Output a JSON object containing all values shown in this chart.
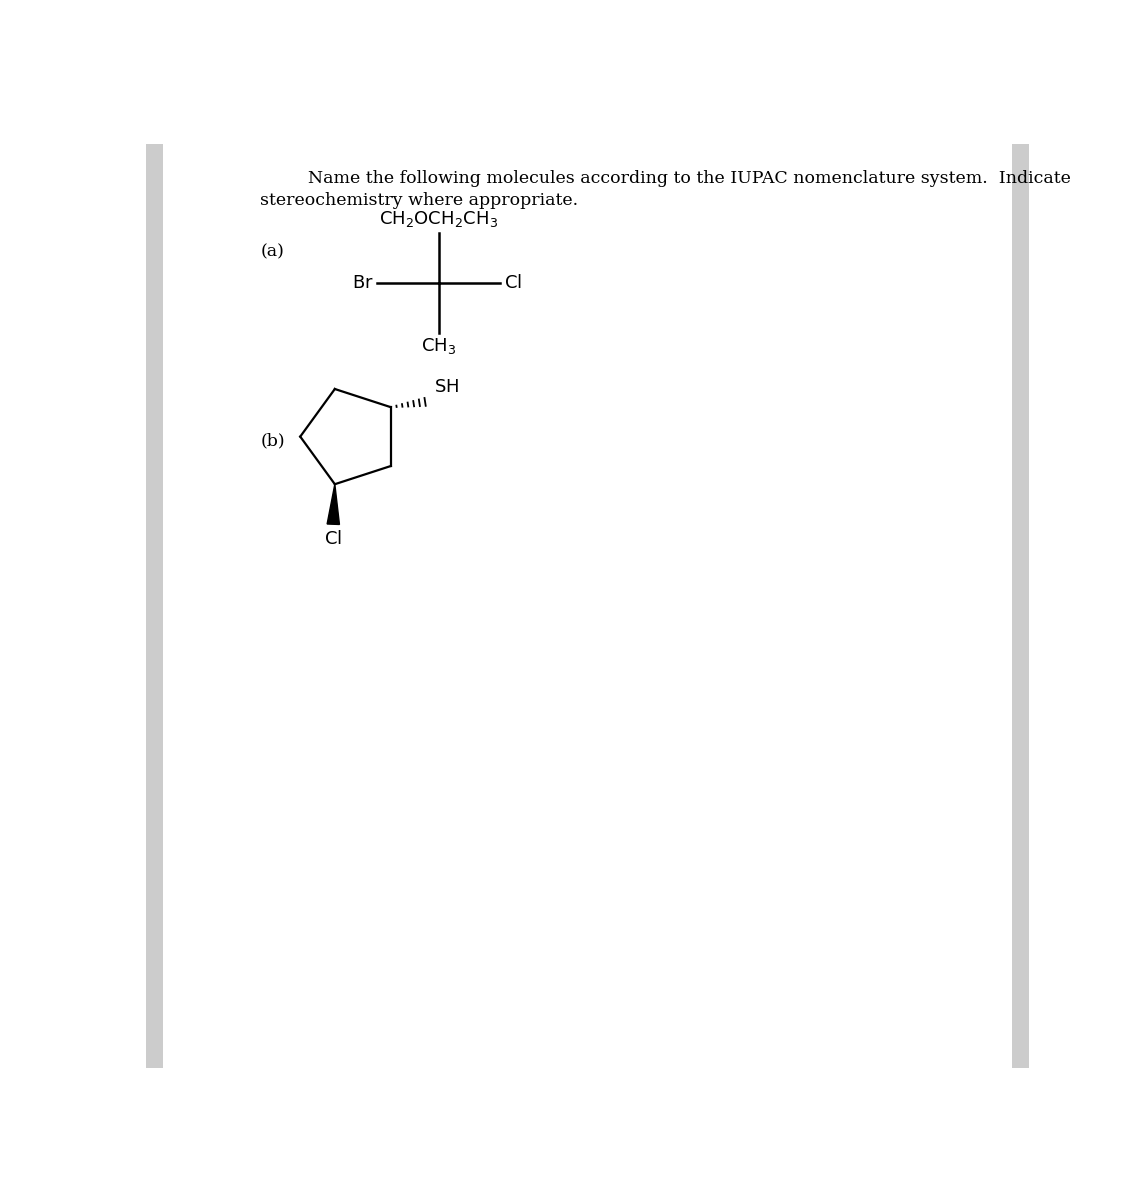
{
  "background_color": "#ffffff",
  "border_color": "#d8d8d8",
  "title_line1": "Name the following molecules according to the IUPAC nomenclature system.  Indicate",
  "title_line2": "stereochemistry where appropriate.",
  "title_fontsize": 12.5,
  "label_a": "(a)",
  "label_b": "(b)",
  "label_fontsize": 12.5,
  "mol_fontsize": 13.0
}
